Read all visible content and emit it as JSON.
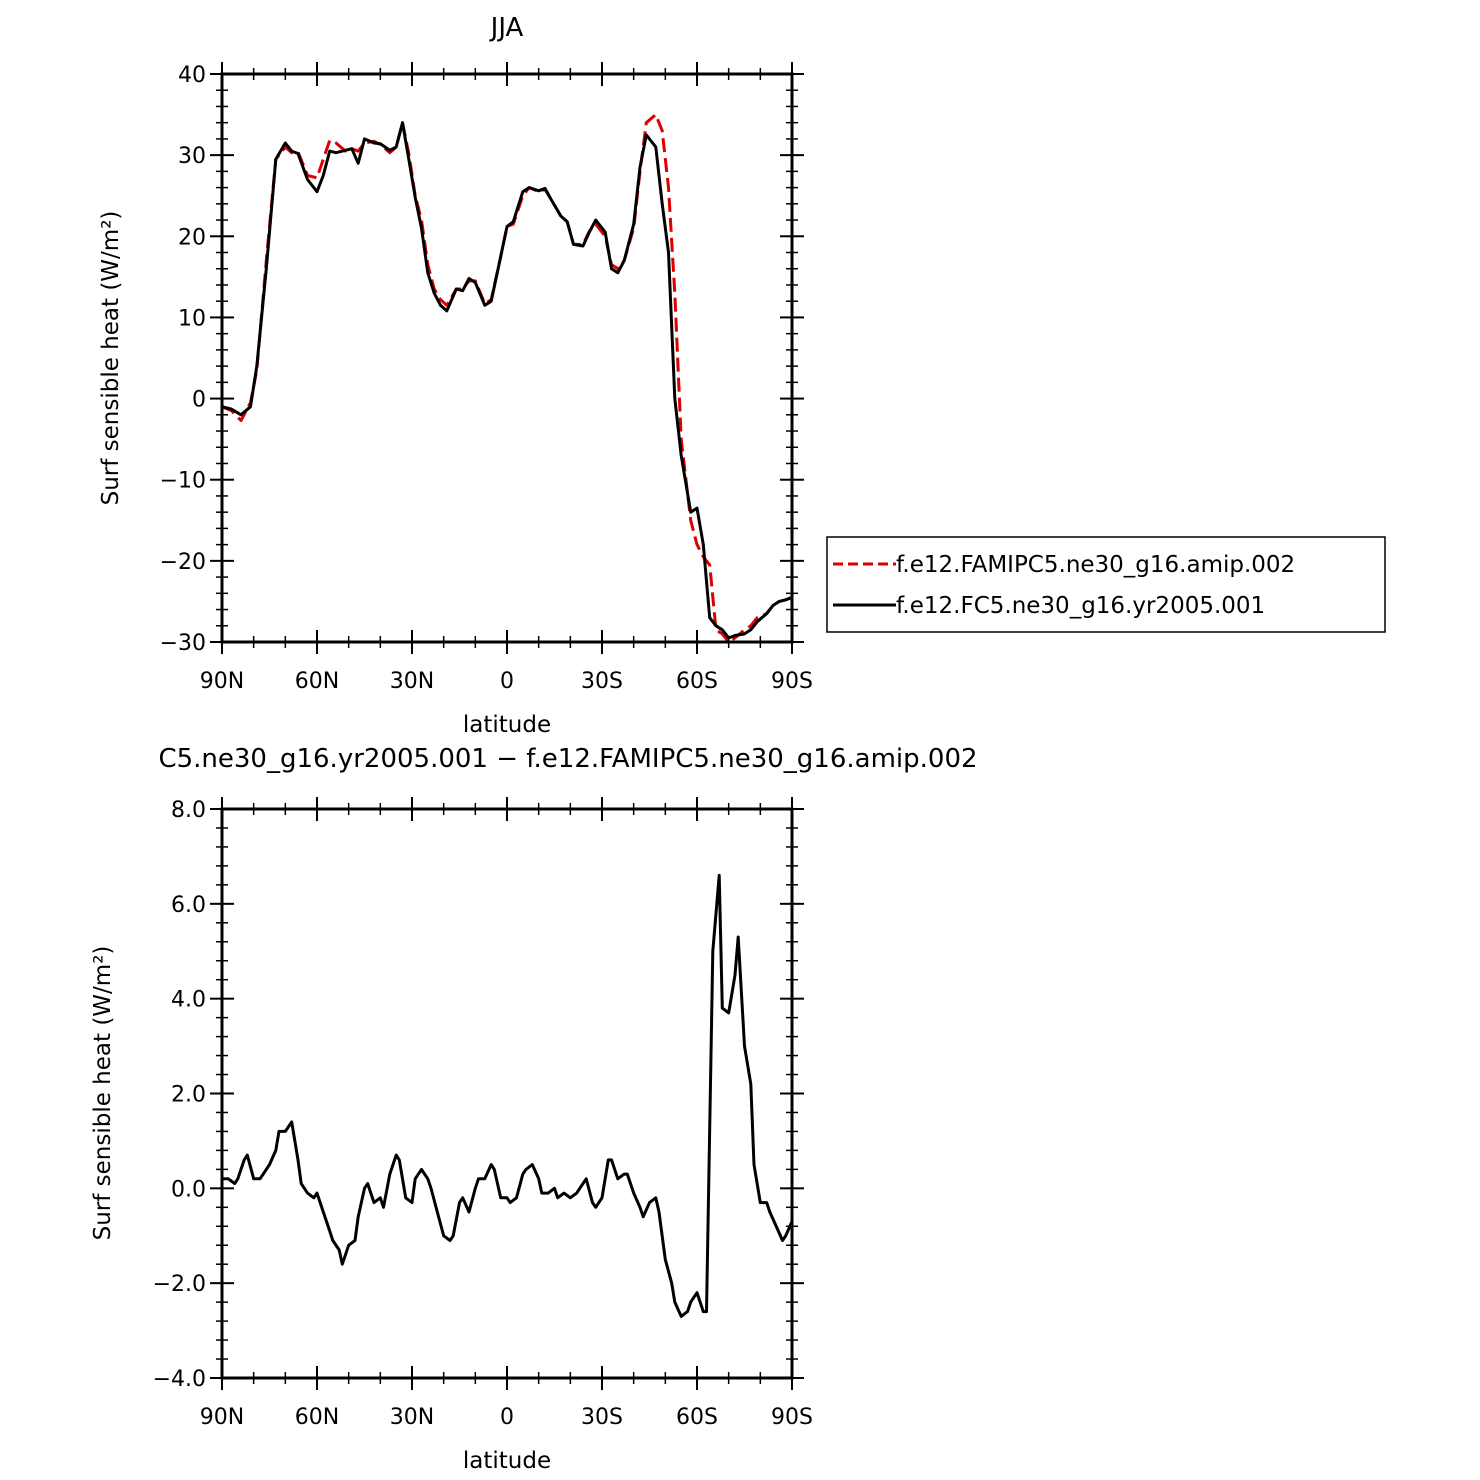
{
  "chart_data": [
    {
      "type": "line",
      "title": "JJA",
      "xlabel": "latitude",
      "ylabel": "Surf sensible heat (W/m²)",
      "xlim": [
        90,
        -90
      ],
      "ylim": [
        -30,
        40
      ],
      "x_ticks": [
        "90N",
        "60N",
        "30N",
        "0",
        "30S",
        "60S",
        "90S"
      ],
      "y_ticks": [
        "40",
        "30",
        "20",
        "10",
        "0",
        "−10",
        "−20",
        "−30"
      ],
      "grid": false,
      "legend": "right",
      "series": [
        {
          "name": "f.e12.FAMIPC5.ne30_g16.amip.002",
          "color": "#dd0000",
          "dash": "dashed",
          "x": [
            90,
            87,
            84,
            81,
            79,
            76,
            73,
            70,
            68,
            66,
            63,
            60,
            58,
            56,
            54,
            51,
            49,
            47,
            45,
            42,
            40,
            37,
            35,
            33,
            31,
            29,
            27,
            25,
            23,
            21,
            19,
            16,
            14,
            12,
            10,
            7,
            5,
            2,
            0,
            -2,
            -5,
            -7,
            -10,
            -12,
            -14,
            -17,
            -19,
            -21,
            -24,
            -26,
            -28,
            -31,
            -33,
            -35,
            -37,
            -40,
            -42,
            -44,
            -47,
            -49,
            -51,
            -53,
            -55,
            -58,
            -60,
            -62,
            -64,
            -66,
            -68,
            -70,
            -72,
            -75,
            -77,
            -79,
            -82,
            -84,
            -86,
            -88,
            -90
          ],
          "values": [
            -1,
            -1.5,
            -2.7,
            -0.5,
            3.5,
            17,
            29.5,
            31,
            30.3,
            30.4,
            27.5,
            27.2,
            29.5,
            31.8,
            31.5,
            30.5,
            30.8,
            30.5,
            31.5,
            31.7,
            31.3,
            30.3,
            31,
            34,
            30.2,
            25,
            22,
            16.5,
            13.5,
            12.2,
            11.5,
            13.5,
            13.5,
            14.5,
            14.5,
            11.7,
            12.2,
            17.5,
            21.2,
            21.5,
            25,
            26,
            25.5,
            25.8,
            24.5,
            22.5,
            21.8,
            19,
            19,
            20.6,
            21.5,
            20,
            16.5,
            16,
            17,
            21,
            28,
            34,
            35,
            33,
            26,
            13,
            -5,
            -15,
            -18,
            -19.5,
            -20.5,
            -28.5,
            -29,
            -30,
            -29.5,
            -28.5,
            -28,
            -27,
            -26.5,
            -25.5,
            -25,
            -24.8,
            -24.5
          ]
        },
        {
          "name": "f.e12.FC5.ne30_g16.yr2005.001",
          "color": "#000000",
          "dash": "solid",
          "x": [
            90,
            87,
            84,
            81,
            79,
            76,
            73,
            70,
            68,
            66,
            63,
            60,
            58,
            56,
            54,
            51,
            49,
            47,
            45,
            42,
            40,
            37,
            35,
            33,
            31,
            29,
            27,
            25,
            23,
            21,
            19,
            16,
            14,
            12,
            10,
            7,
            5,
            2,
            0,
            -2,
            -5,
            -7,
            -10,
            -12,
            -14,
            -17,
            -19,
            -21,
            -24,
            -26,
            -28,
            -31,
            -33,
            -35,
            -37,
            -40,
            -42,
            -44,
            -47,
            -49,
            -51,
            -53,
            -55,
            -58,
            -60,
            -62,
            -64,
            -66,
            -68,
            -70,
            -72,
            -75,
            -77,
            -79,
            -82,
            -84,
            -86,
            -88,
            -90
          ],
          "values": [
            -1,
            -1.3,
            -2,
            -1,
            4,
            16,
            29.5,
            31.5,
            30.5,
            30.2,
            27,
            25.5,
            27.5,
            30.5,
            30.3,
            30.6,
            30.8,
            29,
            32,
            31.5,
            31.4,
            30.6,
            31,
            34,
            29.5,
            24.8,
            21,
            15.5,
            13,
            11.5,
            10.8,
            13.5,
            13.3,
            14.8,
            14.3,
            11.5,
            12,
            17.5,
            21.2,
            21.8,
            25.5,
            26,
            25.6,
            25.9,
            24.5,
            22.5,
            21.8,
            19,
            18.8,
            20.5,
            22,
            20.5,
            16,
            15.5,
            17,
            21.5,
            28.5,
            32.5,
            31,
            24,
            18,
            0,
            -7,
            -14,
            -13.5,
            -18,
            -27,
            -28,
            -28.5,
            -29.5,
            -29.2,
            -29,
            -28.5,
            -27.5,
            -26.5,
            -25.5,
            -25,
            -24.8,
            -24.5
          ]
        }
      ]
    },
    {
      "type": "line",
      "title": "C5.ne30_g16.yr2005.001 − f.e12.FAMIPC5.ne30_g16.amip.002",
      "xlabel": "latitude",
      "ylabel": "Surf sensible heat (W/m²)",
      "xlim": [
        90,
        -90
      ],
      "ylim": [
        -4,
        8
      ],
      "x_ticks": [
        "90N",
        "60N",
        "30N",
        "0",
        "30S",
        "60S",
        "90S"
      ],
      "y_ticks": [
        "8.0",
        "6.0",
        "4.0",
        "2.0",
        "0.0",
        "−2.0",
        "−4.0"
      ],
      "grid": false,
      "series": [
        {
          "color": "#000000",
          "dash": "solid",
          "x": [
            90,
            88,
            86,
            85,
            83,
            82,
            80,
            78,
            77,
            75,
            73,
            72,
            70,
            68,
            66,
            65,
            63,
            61,
            60,
            58,
            56,
            55,
            53,
            52,
            50,
            48,
            47,
            45,
            44,
            42,
            40,
            39,
            37,
            35,
            34,
            32,
            30,
            29,
            27,
            25,
            24,
            22,
            20,
            18,
            17,
            15,
            14,
            12,
            10,
            9,
            7,
            5,
            4,
            2,
            0,
            -1,
            -3,
            -5,
            -6,
            -8,
            -10,
            -11,
            -13,
            -15,
            -16,
            -18,
            -20,
            -22,
            -23,
            -25,
            -27,
            -28,
            -30,
            -32,
            -33,
            -35,
            -37,
            -38,
            -40,
            -42,
            -43,
            -45,
            -47,
            -48,
            -50,
            -52,
            -53,
            -55,
            -57,
            -58,
            -60,
            -62,
            -63,
            -65,
            -67,
            -68,
            -70,
            -72,
            -73,
            -75,
            -77,
            -78,
            -80,
            -82,
            -83,
            -85,
            -87,
            -88,
            -90
          ],
          "values": [
            0.2,
            0.2,
            0.1,
            0.2,
            0.6,
            0.7,
            0.2,
            0.2,
            0.3,
            0.5,
            0.8,
            1.2,
            1.2,
            1.4,
            0.6,
            0.1,
            -0.1,
            -0.2,
            -0.1,
            -0.5,
            -0.9,
            -1.1,
            -1.3,
            -1.6,
            -1.2,
            -1.1,
            -0.6,
            0,
            0.1,
            -0.3,
            -0.2,
            -0.4,
            0.3,
            0.7,
            0.6,
            -0.2,
            -0.3,
            0.2,
            0.4,
            0.2,
            0,
            -0.5,
            -1,
            -1.1,
            -1,
            -0.3,
            -0.2,
            -0.5,
            0,
            0.2,
            0.2,
            0.5,
            0.4,
            -0.2,
            -0.2,
            -0.3,
            -0.2,
            0.3,
            0.4,
            0.5,
            0.2,
            -0.1,
            -0.1,
            0,
            -0.2,
            -0.1,
            -0.2,
            -0.1,
            0,
            0.2,
            -0.3,
            -0.4,
            -0.2,
            0.6,
            0.6,
            0.2,
            0.3,
            0.3,
            -0.1,
            -0.4,
            -0.6,
            -0.3,
            -0.2,
            -0.5,
            -1.5,
            -2,
            -2.4,
            -2.7,
            -2.6,
            -2.4,
            -2.2,
            -2.6,
            -2.6,
            5,
            6.6,
            3.8,
            3.7,
            4.5,
            5.3,
            3,
            2.2,
            0.5,
            -0.3,
            -0.3,
            -0.5,
            -0.8,
            -1.1,
            -1,
            -0.7
          ]
        }
      ]
    }
  ]
}
